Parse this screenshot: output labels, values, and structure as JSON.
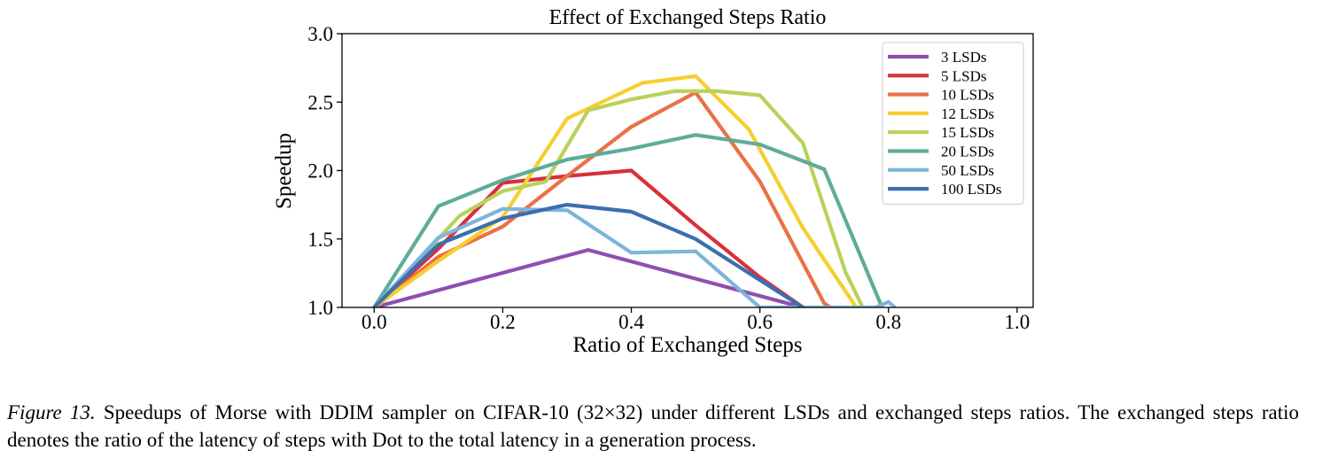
{
  "chart_data": {
    "type": "line",
    "title": "Effect of Exchanged Steps Ratio",
    "xlabel": "Ratio of Exchanged Steps",
    "ylabel": "Speedup",
    "xlim": [
      -0.05,
      1.025
    ],
    "ylim": [
      1.0,
      3.0
    ],
    "xticks": [
      "0.0",
      "0.2",
      "0.4",
      "0.6",
      "0.8",
      "1.0"
    ],
    "yticks": [
      "1.0",
      "1.5",
      "2.0",
      "2.5",
      "3.0"
    ],
    "grid": false,
    "legend_position": "top-right",
    "series": [
      {
        "name": "3 LSDs",
        "color": "#8e4fb0",
        "points": [
          [
            0.0,
            1.0
          ],
          [
            0.333,
            1.42
          ],
          [
            0.5,
            1.21
          ],
          [
            0.667,
            1.0
          ]
        ]
      },
      {
        "name": "5 LSDs",
        "color": "#d8303a",
        "points": [
          [
            0.0,
            1.0
          ],
          [
            0.1,
            1.43
          ],
          [
            0.2,
            1.91
          ],
          [
            0.3,
            1.96
          ],
          [
            0.4,
            2.0
          ],
          [
            0.5,
            1.6
          ],
          [
            0.6,
            1.22
          ],
          [
            0.667,
            1.0
          ]
        ]
      },
      {
        "name": "10 LSDs",
        "color": "#ea7147",
        "points": [
          [
            0.0,
            1.0
          ],
          [
            0.1,
            1.37
          ],
          [
            0.2,
            1.59
          ],
          [
            0.3,
            1.96
          ],
          [
            0.4,
            2.32
          ],
          [
            0.5,
            2.57
          ],
          [
            0.6,
            1.92
          ],
          [
            0.7,
            1.03
          ],
          [
            0.71,
            1.0
          ]
        ]
      },
      {
        "name": "12 LSDs",
        "color": "#f6ce2f",
        "points": [
          [
            0.0,
            1.0
          ],
          [
            0.1,
            1.34
          ],
          [
            0.2,
            1.66
          ],
          [
            0.3,
            2.38
          ],
          [
            0.417,
            2.64
          ],
          [
            0.5,
            2.69
          ],
          [
            0.583,
            2.3
          ],
          [
            0.667,
            1.58
          ],
          [
            0.75,
            1.0
          ]
        ]
      },
      {
        "name": "15 LSDs",
        "color": "#b8d25a",
        "points": [
          [
            0.0,
            1.0
          ],
          [
            0.133,
            1.67
          ],
          [
            0.2,
            1.85
          ],
          [
            0.267,
            1.92
          ],
          [
            0.333,
            2.44
          ],
          [
            0.4,
            2.52
          ],
          [
            0.467,
            2.58
          ],
          [
            0.533,
            2.58
          ],
          [
            0.6,
            2.55
          ],
          [
            0.667,
            2.2
          ],
          [
            0.733,
            1.26
          ],
          [
            0.76,
            1.0
          ]
        ]
      },
      {
        "name": "20 LSDs",
        "color": "#5fac98",
        "points": [
          [
            0.0,
            1.0
          ],
          [
            0.1,
            1.74
          ],
          [
            0.2,
            1.93
          ],
          [
            0.3,
            2.08
          ],
          [
            0.4,
            2.16
          ],
          [
            0.5,
            2.26
          ],
          [
            0.6,
            2.19
          ],
          [
            0.7,
            2.01
          ],
          [
            0.79,
            1.0
          ]
        ]
      },
      {
        "name": "50 LSDs",
        "color": "#7eb5d9",
        "points": [
          [
            0.0,
            1.0
          ],
          [
            0.1,
            1.51
          ],
          [
            0.2,
            1.72
          ],
          [
            0.3,
            1.71
          ],
          [
            0.4,
            1.4
          ],
          [
            0.5,
            1.41
          ],
          [
            0.6,
            1.0
          ],
          [
            0.78,
            1.0
          ],
          [
            0.8,
            1.04
          ],
          [
            0.81,
            1.0
          ]
        ]
      },
      {
        "name": "100 LSDs",
        "color": "#3b6fb0",
        "points": [
          [
            0.0,
            1.0
          ],
          [
            0.1,
            1.46
          ],
          [
            0.2,
            1.65
          ],
          [
            0.3,
            1.75
          ],
          [
            0.4,
            1.7
          ],
          [
            0.5,
            1.5
          ],
          [
            0.6,
            1.2
          ],
          [
            0.667,
            1.0
          ]
        ]
      }
    ]
  },
  "caption": {
    "label": "Figure 13.",
    "text": " Speedups of Morse with DDIM sampler on CIFAR-10 (32×32) under different LSDs and exchanged steps ratios.  The exchanged steps ratio denotes the ratio of the latency of steps with Dot to the total latency in a generation process."
  }
}
